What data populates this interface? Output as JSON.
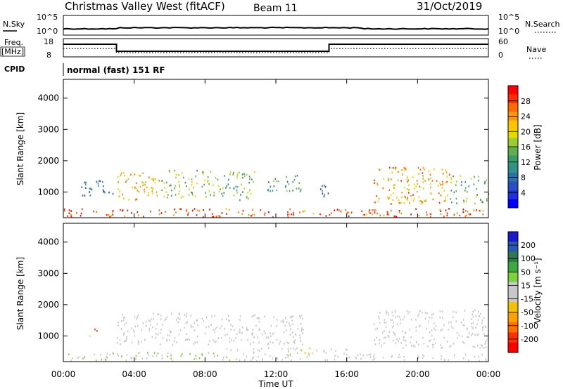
{
  "header": {
    "title": "Christmas Valley West (fitACF)",
    "beam": "Beam 11",
    "date": "31/Oct/2019"
  },
  "panels": {
    "nsky": {
      "label": "N.Sky",
      "left_ticks": [
        "10^5",
        "10^0"
      ],
      "right_ticks": [
        "10^5",
        "10^0"
      ],
      "right_label": "N.Search"
    },
    "freq": {
      "label1": "Freq.",
      "label2": "[MHz]",
      "left_ticks": [
        "18",
        "8"
      ],
      "right_ticks": [
        "60",
        "0"
      ],
      "right_label": "Nave"
    },
    "cpid": {
      "label": "CPID",
      "text": "normal (fast) 151 RF"
    }
  },
  "x_axis": {
    "title": "Time UT",
    "ticks": [
      "00:00",
      "04:00",
      "08:00",
      "12:00",
      "16:00",
      "20:00",
      "00:00"
    ]
  },
  "power_colorbar": {
    "title": "Power [dB]",
    "ticks": [
      "28",
      "24",
      "20",
      "16",
      "12",
      "8",
      "4"
    ],
    "colors": [
      "#ff0000",
      "#ff3000",
      "#ff6a00",
      "#ff9800",
      "#ffc400",
      "#e8d800",
      "#9acd32",
      "#5fae55",
      "#3a9a6a",
      "#2f8f8a",
      "#2f6fa6",
      "#2b4fc2",
      "#1e2ee0",
      "#0000ff"
    ]
  },
  "velocity_colorbar": {
    "title": "Velocity [m s⁻¹]",
    "ticks": [
      "200",
      "100",
      "50",
      "15",
      "-15",
      "-50",
      "-100",
      "-200"
    ],
    "colors": [
      "#1a1acc",
      "#2a5ab0",
      "#2f7a4a",
      "#3fa83f",
      "#7fd23f",
      "#c8c8c8",
      "#c8c8c8",
      "#f2c200",
      "#ffa000",
      "#ff7000",
      "#ff3000",
      "#ff0000"
    ]
  },
  "chart_data": [
    {
      "type": "heatmap",
      "title": "Power [dB]",
      "xlabel": "Time UT",
      "ylabel": "Slant Range [km]",
      "xlim": [
        0,
        24
      ],
      "ylim": [
        180,
        4600
      ],
      "yticks": [
        1000,
        2000,
        3000,
        4000
      ],
      "xticks": [
        "00:00",
        "04:00",
        "08:00",
        "12:00",
        "16:00",
        "20:00",
        "00:00"
      ],
      "colorbar_range": [
        0,
        30
      ],
      "clusters": [
        {
          "t0": 1.0,
          "t1": 2.8,
          "r0": 800,
          "r1": 1350,
          "value": 8
        },
        {
          "t0": 3.0,
          "t1": 5.5,
          "r0": 700,
          "r1": 1600,
          "value": 20
        },
        {
          "t0": 5.5,
          "t1": 7.6,
          "r0": 800,
          "r1": 1700,
          "value": 16
        },
        {
          "t0": 7.8,
          "t1": 10.8,
          "r0": 700,
          "r1": 1650,
          "value": 14
        },
        {
          "t0": 11.5,
          "t1": 13.6,
          "r0": 1000,
          "r1": 1550,
          "value": 12
        },
        {
          "t0": 14.3,
          "t1": 15.0,
          "r0": 700,
          "r1": 1200,
          "value": 8
        },
        {
          "t0": 17.5,
          "t1": 21.8,
          "r0": 600,
          "r1": 1800,
          "value": 22
        },
        {
          "t0": 21.8,
          "t1": 24.0,
          "r0": 600,
          "r1": 1500,
          "value": 14
        },
        {
          "t0": 0.0,
          "t1": 24.0,
          "r0": 180,
          "r1": 450,
          "value": 26
        }
      ]
    },
    {
      "type": "heatmap",
      "title": "Velocity [m s⁻¹]",
      "xlabel": "Time UT",
      "ylabel": "Slant Range [km]",
      "xlim": [
        0,
        24
      ],
      "ylim": [
        180,
        4600
      ],
      "yticks": [
        1000,
        2000,
        3000,
        4000
      ],
      "xticks": [
        "00:00",
        "04:00",
        "08:00",
        "12:00",
        "16:00",
        "20:00",
        "00:00"
      ],
      "colorbar_range": [
        -250,
        250
      ],
      "clusters": [
        {
          "t0": 1.7,
          "t1": 1.9,
          "r0": 1050,
          "r1": 1400,
          "value": -200
        },
        {
          "t0": 1.0,
          "t1": 1.5,
          "r0": 900,
          "r1": 1000,
          "value": 50
        },
        {
          "t0": 3.0,
          "t1": 7.6,
          "r0": 700,
          "r1": 1700,
          "value": 0
        },
        {
          "t0": 7.8,
          "t1": 13.6,
          "r0": 700,
          "r1": 1650,
          "value": 0
        },
        {
          "t0": 17.5,
          "t1": 24.0,
          "r0": 600,
          "r1": 1800,
          "value": 0
        },
        {
          "t0": 0.0,
          "t1": 9.0,
          "r0": 180,
          "r1": 450,
          "value": 40
        },
        {
          "t0": 9.0,
          "t1": 16.0,
          "r0": 180,
          "r1": 600,
          "value": -30
        },
        {
          "t0": 16.0,
          "t1": 24.0,
          "r0": 180,
          "r1": 400,
          "value": 20
        }
      ]
    }
  ]
}
